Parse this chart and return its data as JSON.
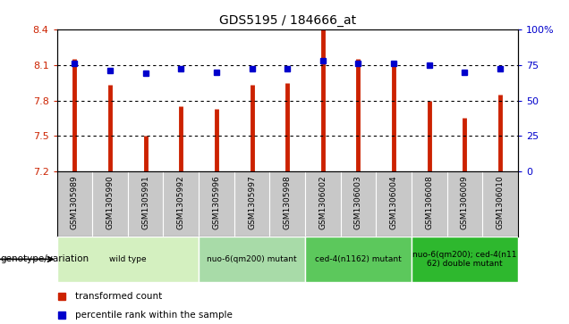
{
  "title": "GDS5195 / 184666_at",
  "samples": [
    "GSM1305989",
    "GSM1305990",
    "GSM1305991",
    "GSM1305992",
    "GSM1305996",
    "GSM1305997",
    "GSM1305998",
    "GSM1306002",
    "GSM1306003",
    "GSM1306004",
    "GSM1306008",
    "GSM1306009",
    "GSM1306010"
  ],
  "red_values": [
    8.15,
    7.93,
    7.5,
    7.75,
    7.73,
    7.93,
    7.95,
    8.4,
    8.15,
    8.1,
    7.8,
    7.65,
    7.85
  ],
  "blue_values": [
    76,
    71,
    69,
    72,
    70,
    72,
    72,
    78,
    76,
    76,
    75,
    70,
    72
  ],
  "ylim_left": [
    7.2,
    8.4
  ],
  "ylim_right": [
    0,
    100
  ],
  "yticks_left": [
    7.2,
    7.5,
    7.8,
    8.1,
    8.4
  ],
  "yticks_right": [
    0,
    25,
    50,
    75,
    100
  ],
  "grid_values": [
    7.5,
    7.8,
    8.1
  ],
  "groups": [
    {
      "label": "wild type",
      "indices": [
        0,
        3
      ],
      "color": "#d4f0c0"
    },
    {
      "label": "nuo-6(qm200) mutant",
      "indices": [
        4,
        6
      ],
      "color": "#a8dba8"
    },
    {
      "label": "ced-4(n1162) mutant",
      "indices": [
        7,
        9
      ],
      "color": "#5cc85c"
    },
    {
      "label": "nuo-6(qm200); ced-4(n11\n62) double mutant",
      "indices": [
        10,
        12
      ],
      "color": "#2eb82e"
    }
  ],
  "bar_color": "#cc2200",
  "dot_color": "#0000cc",
  "legend_red": "transformed count",
  "legend_blue": "percentile rank within the sample",
  "genotype_label": "genotype/variation",
  "left_tick_color": "#cc2200",
  "right_tick_color": "#0000cc",
  "xtick_bg": "#c8c8c8",
  "plot_bg": "white"
}
